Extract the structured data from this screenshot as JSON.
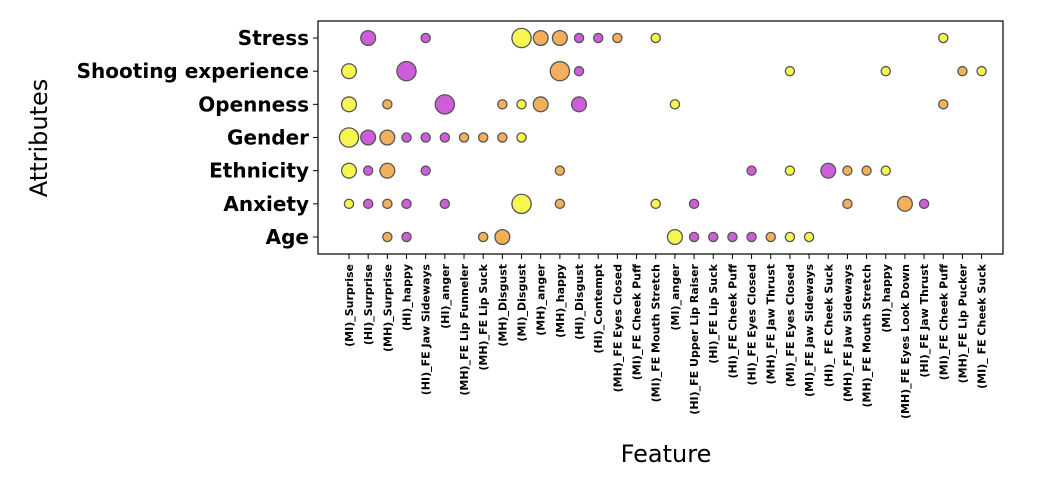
{
  "chart_data": {
    "type": "scatter",
    "title": "",
    "xlabel": "Feature",
    "ylabel": "Attributes",
    "grid": false,
    "legend": "none",
    "colors": {
      "yellow": "#f5f542",
      "orange": "#f2a94e",
      "magenta": "#c94fd6"
    },
    "attributes": [
      "Age",
      "Anxiety",
      "Ethnicity",
      "Gender",
      "Openness",
      "Shooting experience",
      "Stress"
    ],
    "features": [
      "(MI)_Surprise",
      "(HI)_Surprise",
      "(MH)_Surprise",
      "(HI)_happy",
      "(HI)_FE Jaw Sideways",
      "(HI)_anger",
      "(MH)_FE Lip Funneler",
      "(MH)_FE Lip Suck",
      "(MH)_Disgust",
      "(MI)_Disgust",
      "(MH)_anger",
      "(MH)_happy",
      "(HI)_Disgust",
      "(HI)_Contempt",
      "(MH)_FE Eyes Closed",
      "(MI)_FE Cheek Puff",
      "(MI)_FE Mouth Stretch",
      "(MI)_anger",
      "(HI)_FE Upper Lip Raiser",
      "(HI)_FE Lip Suck",
      "(HI)_FE Cheek Puff",
      "(HI)_FE Eyes Closed",
      "(MH)_FE Jaw Thrust",
      "(MI)_FE Eyes Closed",
      "(MI)_FE Jaw Sideways",
      "(HI)_ FE Cheek Suck",
      "(MH)_FE Jaw Sideways",
      "(MH)_FE Mouth Stretch",
      "(MI)_happy",
      "(MH)_FE Eyes Look Down",
      "(HI)_FE Jaw Thrust",
      "(MI)_FE Cheek Puff",
      "(MH)_FE Lip Pucker",
      "(MI)_ FE Cheek Suck"
    ],
    "points": [
      {
        "feature": "(HI)_Surprise",
        "attribute": "Stress",
        "size": 2,
        "color": "magenta"
      },
      {
        "feature": "(HI)_FE Jaw Sideways",
        "attribute": "Stress",
        "size": 1,
        "color": "magenta"
      },
      {
        "feature": "(MI)_Disgust",
        "attribute": "Stress",
        "size": 3,
        "color": "yellow"
      },
      {
        "feature": "(MH)_anger",
        "attribute": "Stress",
        "size": 2,
        "color": "orange"
      },
      {
        "feature": "(MH)_happy",
        "attribute": "Stress",
        "size": 2,
        "color": "orange"
      },
      {
        "feature": "(HI)_Disgust",
        "attribute": "Stress",
        "size": 1,
        "color": "magenta"
      },
      {
        "feature": "(HI)_Contempt",
        "attribute": "Stress",
        "size": 1,
        "color": "magenta"
      },
      {
        "feature": "(MH)_FE Eyes Closed",
        "attribute": "Stress",
        "size": 1,
        "color": "orange"
      },
      {
        "feature": "(MI)_FE Cheek Puff",
        "attribute": "Stress",
        "size": 1,
        "color": "yellow"
      },
      {
        "feature": "(MI)_FE Mouth Stretch",
        "attribute": "Stress",
        "size": 1,
        "color": "yellow"
      },
      {
        "feature": "(MI)_Surprise",
        "attribute": "Shooting experience",
        "size": 2,
        "color": "yellow"
      },
      {
        "feature": "(HI)_happy",
        "attribute": "Shooting experience",
        "size": 3,
        "color": "magenta"
      },
      {
        "feature": "(MH)_happy",
        "attribute": "Shooting experience",
        "size": 3,
        "color": "orange"
      },
      {
        "feature": "(HI)_Disgust",
        "attribute": "Shooting experience",
        "size": 1,
        "color": "magenta"
      },
      {
        "feature": "(MI)_FE Eyes Closed",
        "attribute": "Shooting experience",
        "size": 1,
        "color": "yellow"
      },
      {
        "feature": "(MI)_happy",
        "attribute": "Shooting experience",
        "size": 1,
        "color": "yellow"
      },
      {
        "feature": "(MH)_FE Lip Pucker",
        "attribute": "Shooting experience",
        "size": 1,
        "color": "orange"
      },
      {
        "feature": "(MI)_ FE Cheek Suck",
        "attribute": "Shooting experience",
        "size": 1,
        "color": "yellow"
      },
      {
        "feature": "(MI)_Surprise",
        "attribute": "Openness",
        "size": 2,
        "color": "yellow"
      },
      {
        "feature": "(MH)_Surprise",
        "attribute": "Openness",
        "size": 1,
        "color": "orange"
      },
      {
        "feature": "(HI)_anger",
        "attribute": "Openness",
        "size": 3,
        "color": "magenta"
      },
      {
        "feature": "(MH)_Disgust",
        "attribute": "Openness",
        "size": 1,
        "color": "orange"
      },
      {
        "feature": "(MI)_Disgust",
        "attribute": "Openness",
        "size": 1,
        "color": "yellow"
      },
      {
        "feature": "(MH)_anger",
        "attribute": "Openness",
        "size": 2,
        "color": "orange"
      },
      {
        "feature": "(HI)_Disgust",
        "attribute": "Openness",
        "size": 2,
        "color": "magenta"
      },
      {
        "feature": "(MI)_anger",
        "attribute": "Openness",
        "size": 1,
        "color": "yellow"
      },
      {
        "feature": "(MI)_FE Cheek Puff",
        "attribute": "Openness",
        "size": 1,
        "color": "orange"
      },
      {
        "feature": "(MI)_Surprise",
        "attribute": "Gender",
        "size": 3,
        "color": "yellow"
      },
      {
        "feature": "(HI)_Surprise",
        "attribute": "Gender",
        "size": 2,
        "color": "magenta"
      },
      {
        "feature": "(MH)_Surprise",
        "attribute": "Gender",
        "size": 2,
        "color": "orange"
      },
      {
        "feature": "(HI)_happy",
        "attribute": "Gender",
        "size": 1,
        "color": "magenta"
      },
      {
        "feature": "(HI)_FE Jaw Sideways",
        "attribute": "Gender",
        "size": 1,
        "color": "magenta"
      },
      {
        "feature": "(HI)_anger",
        "attribute": "Gender",
        "size": 1,
        "color": "magenta"
      },
      {
        "feature": "(MH)_FE Lip Funneler",
        "attribute": "Gender",
        "size": 1,
        "color": "orange"
      },
      {
        "feature": "(MH)_FE Lip Suck",
        "attribute": "Gender",
        "size": 1,
        "color": "orange"
      },
      {
        "feature": "(MH)_Disgust",
        "attribute": "Gender",
        "size": 1,
        "color": "orange"
      },
      {
        "feature": "(MI)_Disgust",
        "attribute": "Gender",
        "size": 1,
        "color": "yellow"
      },
      {
        "feature": "(MI)_Surprise",
        "attribute": "Ethnicity",
        "size": 2,
        "color": "yellow"
      },
      {
        "feature": "(HI)_Surprise",
        "attribute": "Ethnicity",
        "size": 1,
        "color": "magenta"
      },
      {
        "feature": "(MH)_Surprise",
        "attribute": "Ethnicity",
        "size": 2,
        "color": "orange"
      },
      {
        "feature": "(HI)_FE Jaw Sideways",
        "attribute": "Ethnicity",
        "size": 1,
        "color": "magenta"
      },
      {
        "feature": "(MH)_happy",
        "attribute": "Ethnicity",
        "size": 1,
        "color": "orange"
      },
      {
        "feature": "(HI)_FE Eyes Closed",
        "attribute": "Ethnicity",
        "size": 1,
        "color": "magenta"
      },
      {
        "feature": "(MI)_FE Eyes Closed",
        "attribute": "Ethnicity",
        "size": 1,
        "color": "yellow"
      },
      {
        "feature": "(HI)_ FE Cheek Suck",
        "attribute": "Ethnicity",
        "size": 2,
        "color": "magenta"
      },
      {
        "feature": "(MH)_FE Jaw Sideways",
        "attribute": "Ethnicity",
        "size": 1,
        "color": "orange"
      },
      {
        "feature": "(MH)_FE Mouth Stretch",
        "attribute": "Ethnicity",
        "size": 1,
        "color": "orange"
      },
      {
        "feature": "(MI)_happy",
        "attribute": "Ethnicity",
        "size": 1,
        "color": "yellow"
      },
      {
        "feature": "(MI)_Surprise",
        "attribute": "Anxiety",
        "size": 1,
        "color": "yellow"
      },
      {
        "feature": "(HI)_Surprise",
        "attribute": "Anxiety",
        "size": 1,
        "color": "magenta"
      },
      {
        "feature": "(MH)_Surprise",
        "attribute": "Anxiety",
        "size": 1,
        "color": "orange"
      },
      {
        "feature": "(HI)_happy",
        "attribute": "Anxiety",
        "size": 1,
        "color": "magenta"
      },
      {
        "feature": "(HI)_anger",
        "attribute": "Anxiety",
        "size": 1,
        "color": "magenta"
      },
      {
        "feature": "(MI)_Disgust",
        "attribute": "Anxiety",
        "size": 3,
        "color": "yellow"
      },
      {
        "feature": "(MH)_happy",
        "attribute": "Anxiety",
        "size": 1,
        "color": "orange"
      },
      {
        "feature": "(MI)_FE Mouth Stretch",
        "attribute": "Anxiety",
        "size": 1,
        "color": "yellow"
      },
      {
        "feature": "(HI)_FE Upper Lip Raiser",
        "attribute": "Anxiety",
        "size": 1,
        "color": "magenta"
      },
      {
        "feature": "(MH)_FE Jaw Sideways",
        "attribute": "Anxiety",
        "size": 1,
        "color": "orange"
      },
      {
        "feature": "(MH)_FE Eyes Look Down",
        "attribute": "Anxiety",
        "size": 2,
        "color": "orange"
      },
      {
        "feature": "(HI)_FE Jaw Thrust",
        "attribute": "Anxiety",
        "size": 1,
        "color": "magenta"
      },
      {
        "feature": "(MH)_Surprise",
        "attribute": "Age",
        "size": 1,
        "color": "orange"
      },
      {
        "feature": "(HI)_happy",
        "attribute": "Age",
        "size": 1,
        "color": "magenta"
      },
      {
        "feature": "(MH)_FE Lip Suck",
        "attribute": "Age",
        "size": 1,
        "color": "orange"
      },
      {
        "feature": "(MH)_Disgust",
        "attribute": "Age",
        "size": 2,
        "color": "orange"
      },
      {
        "feature": "(MI)_anger",
        "attribute": "Age",
        "size": 2,
        "color": "yellow"
      },
      {
        "feature": "(HI)_FE Upper Lip Raiser",
        "attribute": "Age",
        "size": 1,
        "color": "magenta"
      },
      {
        "feature": "(HI)_FE Lip Suck",
        "attribute": "Age",
        "size": 1,
        "color": "magenta"
      },
      {
        "feature": "(HI)_FE Cheek Puff",
        "attribute": "Age",
        "size": 1,
        "color": "magenta"
      },
      {
        "feature": "(HI)_FE Eyes Closed",
        "attribute": "Age",
        "size": 1,
        "color": "magenta"
      },
      {
        "feature": "(MH)_FE Jaw Thrust",
        "attribute": "Age",
        "size": 1,
        "color": "orange"
      },
      {
        "feature": "(MI)_FE Eyes Closed",
        "attribute": "Age",
        "size": 1,
        "color": "yellow"
      },
      {
        "feature": "(MI)_FE Jaw Sideways",
        "attribute": "Age",
        "size": 1,
        "color": "yellow"
      }
    ]
  }
}
